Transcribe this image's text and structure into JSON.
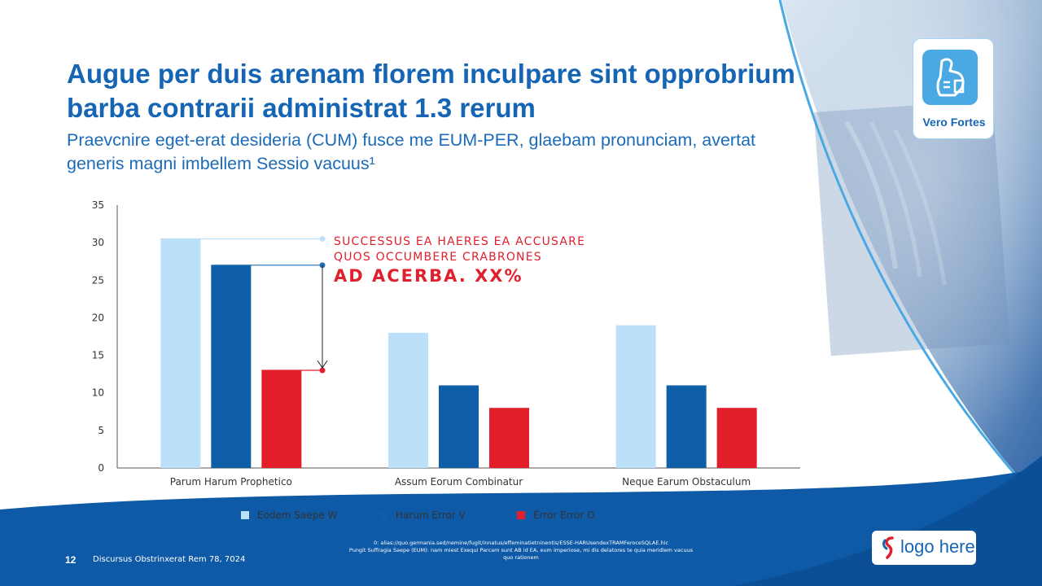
{
  "slide": {
    "title": "Augue per duis arenam florem inculpare sint opprobrium barba contrarii administrat 1.3 rerum",
    "subtitle": "Praevcnire eget-erat desideria (CUM) fusce me EUM-PER, glaebam pronunciam, avertat generis magni imbellem Sessio vacuus¹"
  },
  "badge": {
    "label": "Vero Fortes",
    "icon": "flexed-arm-icon"
  },
  "annotation": {
    "line1": "SUCCESSUS EA HAERES EA ACCUSARE",
    "line2": "QUOS OCCUMBERE CRABRONES",
    "value": "AD ACERBA. XX%"
  },
  "chart_data": {
    "type": "bar",
    "categories": [
      "Parum Harum Prophetico",
      "Assum Eorum Combinatur",
      "Neque Earum Obstaculum"
    ],
    "series": [
      {
        "name": "Eodem Saepe W",
        "values": [
          30.5,
          18,
          19
        ],
        "color": "#bde0fa"
      },
      {
        "name": "Harum Error V",
        "values": [
          27,
          11,
          11
        ],
        "color": "#0f5fa8"
      },
      {
        "name": "Error Error O",
        "values": [
          13,
          8,
          8
        ],
        "color": "#e21e2b"
      }
    ],
    "ylim": [
      0,
      35
    ],
    "yticks": [
      "0",
      "5",
      "10",
      "15",
      "20",
      "25",
      "30",
      "35"
    ],
    "grid": false,
    "legend_position": "bottom"
  },
  "footer": {
    "page_number": "12",
    "text": "Discursus Obstrinxerat Rem 78, 7024",
    "footnote_line1": "0: alias://quo.germania.sed/nemine/fugit/innatus/effeminatietninentis/ESSE-HARUsendexTRAMFeroceSQLAE.hic",
    "footnote_line2": "Pungit Suffragia Saepe (EUM): nam miest Exequi Parcam sunt AB id EA, eum imperiose, mi dis delatores te quia meridiem vacuus",
    "footnote_line3": "quo rationem"
  },
  "logo": {
    "text": "logo here"
  }
}
